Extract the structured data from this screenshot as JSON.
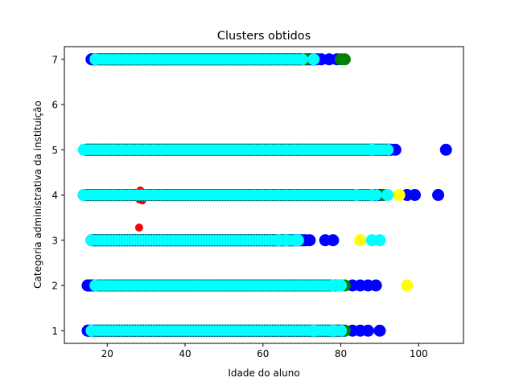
{
  "chart_data": {
    "type": "scatter",
    "title": "Clusters obtidos",
    "xlabel": "Idade do aluno",
    "ylabel": "Categoria administrativa da instituição",
    "xlim": [
      9,
      111.5
    ],
    "ylim": [
      0.72,
      7.28
    ],
    "xticks": [
      20,
      40,
      60,
      80,
      100
    ],
    "yticks": [
      1,
      2,
      3,
      4,
      5,
      6,
      7
    ],
    "grid": false,
    "legend": "none",
    "colors": {
      "blue": "#0000ff",
      "green": "#008000",
      "yellow": "#ffff00",
      "red": "#ff0000",
      "cyan": "#00ffff",
      "black": "#000000"
    },
    "series": [
      {
        "color": "blue",
        "points": [
          [
            16,
            7
          ],
          [
            75,
            7
          ],
          [
            77,
            7
          ],
          [
            79,
            7
          ],
          [
            15,
            5
          ],
          [
            94,
            5
          ],
          [
            107,
            5
          ],
          [
            14,
            4
          ],
          [
            91,
            4
          ],
          [
            97,
            4
          ],
          [
            99,
            4
          ],
          [
            105,
            4
          ],
          [
            16,
            3
          ],
          [
            63,
            3
          ],
          [
            67,
            3
          ],
          [
            72,
            3
          ],
          [
            76,
            3
          ],
          [
            78,
            3
          ],
          [
            15,
            2
          ],
          [
            80,
            2
          ],
          [
            83,
            2
          ],
          [
            85,
            2
          ],
          [
            87,
            2
          ],
          [
            89,
            2
          ],
          [
            15,
            1
          ],
          [
            80,
            1
          ],
          [
            83,
            1
          ],
          [
            85,
            1
          ],
          [
            87,
            1
          ],
          [
            90,
            1
          ]
        ],
        "segments": [
          [
            16,
            74,
            7
          ],
          [
            15,
            93,
            5
          ],
          [
            14,
            90,
            4
          ],
          [
            16,
            71,
            3
          ],
          [
            15,
            79,
            2
          ],
          [
            15,
            81,
            1
          ]
        ]
      },
      {
        "color": "green",
        "points": [
          [
            71,
            7
          ],
          [
            80,
            7
          ],
          [
            81,
            7
          ],
          [
            91,
            4
          ],
          [
            81,
            2
          ],
          [
            72,
            1
          ],
          [
            81,
            1
          ]
        ],
        "segments": []
      },
      {
        "color": "yellow",
        "points": [
          [
            95,
            4
          ],
          [
            85,
            3
          ],
          [
            97,
            2
          ]
        ],
        "segments": []
      },
      {
        "color": "red",
        "points": [
          [
            28.5,
            4.1
          ],
          [
            28.3,
            3.9
          ],
          [
            29,
            3.88
          ],
          [
            28.2,
            3.28
          ]
        ],
        "segments": []
      },
      {
        "color": "cyan",
        "points": [
          [
            73,
            7
          ],
          [
            88,
            5
          ],
          [
            84,
            4
          ],
          [
            88,
            4
          ],
          [
            92,
            4
          ],
          [
            64,
            3
          ],
          [
            66,
            3
          ],
          [
            69,
            3
          ],
          [
            88,
            3
          ],
          [
            90,
            3
          ],
          [
            78,
            2
          ],
          [
            80,
            2
          ],
          [
            73,
            1
          ],
          [
            78,
            1
          ]
        ],
        "segments": [
          [
            17,
            70,
            7
          ],
          [
            14,
            92,
            5
          ],
          [
            14,
            89,
            4
          ],
          [
            16,
            68,
            3
          ],
          [
            17,
            79,
            2
          ],
          [
            16,
            80,
            1
          ]
        ]
      }
    ]
  }
}
